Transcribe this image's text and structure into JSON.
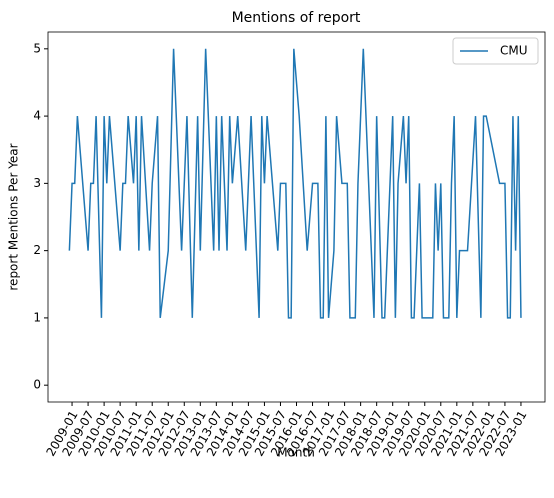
{
  "chart_data": {
    "type": "line",
    "title": "Mentions of report",
    "x_label": "Month",
    "y_label": "report Mentions Per Year",
    "x": [
      "2008-12",
      "2009-01",
      "2009-02",
      "2009-03",
      "2009-07",
      "2009-08",
      "2009-09",
      "2009-10",
      "2009-12",
      "2010-01",
      "2010-02",
      "2010-03",
      "2010-07",
      "2010-08",
      "2010-09",
      "2010-10",
      "2010-12",
      "2011-01",
      "2011-02",
      "2011-03",
      "2011-06",
      "2011-07",
      "2011-09",
      "2011-10",
      "2012-01",
      "2012-03",
      "2012-06",
      "2012-08",
      "2012-10",
      "2012-12",
      "2013-01",
      "2013-03",
      "2013-06",
      "2013-07",
      "2013-08",
      "2013-09",
      "2013-11",
      "2013-12",
      "2014-01",
      "2014-03",
      "2014-06",
      "2014-08",
      "2014-09",
      "2014-11",
      "2014-12",
      "2015-01",
      "2015-02",
      "2015-06",
      "2015-07",
      "2015-09",
      "2015-10",
      "2015-11",
      "2015-12",
      "2016-02",
      "2016-05",
      "2016-07",
      "2016-09",
      "2016-10",
      "2016-11",
      "2016-12",
      "2017-01",
      "2017-03",
      "2017-04",
      "2017-06",
      "2017-08",
      "2017-09",
      "2017-11",
      "2017-12",
      "2018-02",
      "2018-06",
      "2018-07",
      "2018-09",
      "2018-10",
      "2019-01",
      "2019-02",
      "2019-03",
      "2019-05",
      "2019-06",
      "2019-07",
      "2019-08",
      "2019-09",
      "2019-11",
      "2019-12",
      "2020-04",
      "2020-05",
      "2020-06",
      "2020-07",
      "2020-08",
      "2020-10",
      "2020-11",
      "2020-12",
      "2021-01",
      "2021-02",
      "2021-05",
      "2021-08",
      "2021-10",
      "2021-11",
      "2021-12",
      "2022-05",
      "2022-07",
      "2022-08",
      "2022-09",
      "2022-10",
      "2022-11",
      "2022-12",
      "2023-01"
    ],
    "series": [
      {
        "name": "CMU",
        "color": "#1f77b4",
        "values": [
          2,
          3,
          3,
          4,
          2,
          3,
          3,
          4,
          1,
          4,
          3,
          4,
          2,
          3,
          3,
          4,
          3,
          4,
          2,
          4,
          2,
          3,
          4,
          1,
          2,
          5,
          2,
          4,
          1,
          4,
          2,
          5,
          2,
          4,
          2,
          4,
          2,
          4,
          3,
          4,
          2,
          4,
          3,
          1,
          4,
          3,
          4,
          2,
          3,
          3,
          1,
          1,
          5,
          4,
          2,
          3,
          3,
          1,
          1,
          4,
          1,
          2,
          4,
          3,
          3,
          1,
          1,
          3,
          5,
          1,
          4,
          1,
          1,
          4,
          1,
          3,
          4,
          3,
          4,
          1,
          1,
          3,
          1,
          1,
          3,
          2,
          3,
          1,
          1,
          3,
          4,
          1,
          2,
          2,
          4,
          1,
          4,
          4,
          3,
          3,
          1,
          1,
          4,
          2,
          4,
          1
        ]
      }
    ],
    "xlim": [
      "2008-04",
      "2023-10"
    ],
    "ylim": [
      -0.25,
      5.25
    ],
    "yticks": [
      0,
      1,
      2,
      3,
      4,
      5
    ],
    "xticks": [
      "2009-01",
      "2009-07",
      "2010-01",
      "2010-07",
      "2011-01",
      "2011-07",
      "2012-01",
      "2012-07",
      "2013-01",
      "2013-07",
      "2014-01",
      "2014-07",
      "2015-01",
      "2015-07",
      "2016-01",
      "2016-07",
      "2017-01",
      "2017-07",
      "2018-01",
      "2018-07",
      "2019-01",
      "2019-07",
      "2020-01",
      "2020-07",
      "2021-01",
      "2021-07",
      "2022-01",
      "2022-07",
      "2023-01"
    ],
    "legend": "upper right"
  }
}
